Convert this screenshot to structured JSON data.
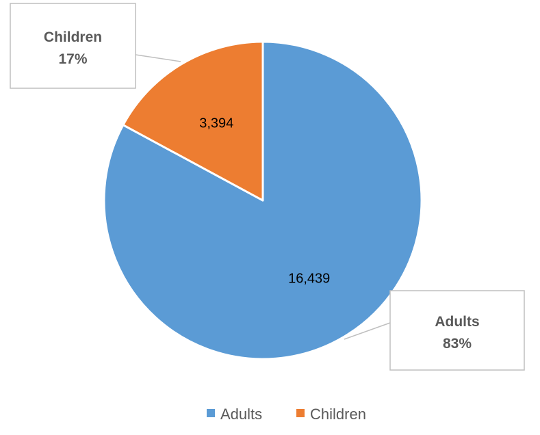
{
  "chart_data": {
    "type": "pie",
    "categories": [
      "Adults",
      "Children"
    ],
    "values": [
      16439,
      3394
    ],
    "value_labels": [
      "16,439",
      "3,394"
    ],
    "percent_labels": [
      "83%",
      "17%"
    ],
    "colors": [
      "#5B9BD5",
      "#ED7D31"
    ],
    "start_angle_deg": 0,
    "direction": "clockwise",
    "slice_border_color": "#ffffff",
    "callout_border_color": "#BFBFBF",
    "legend": {
      "position": "bottom",
      "entries": [
        "Adults",
        "Children"
      ]
    },
    "title": ""
  }
}
